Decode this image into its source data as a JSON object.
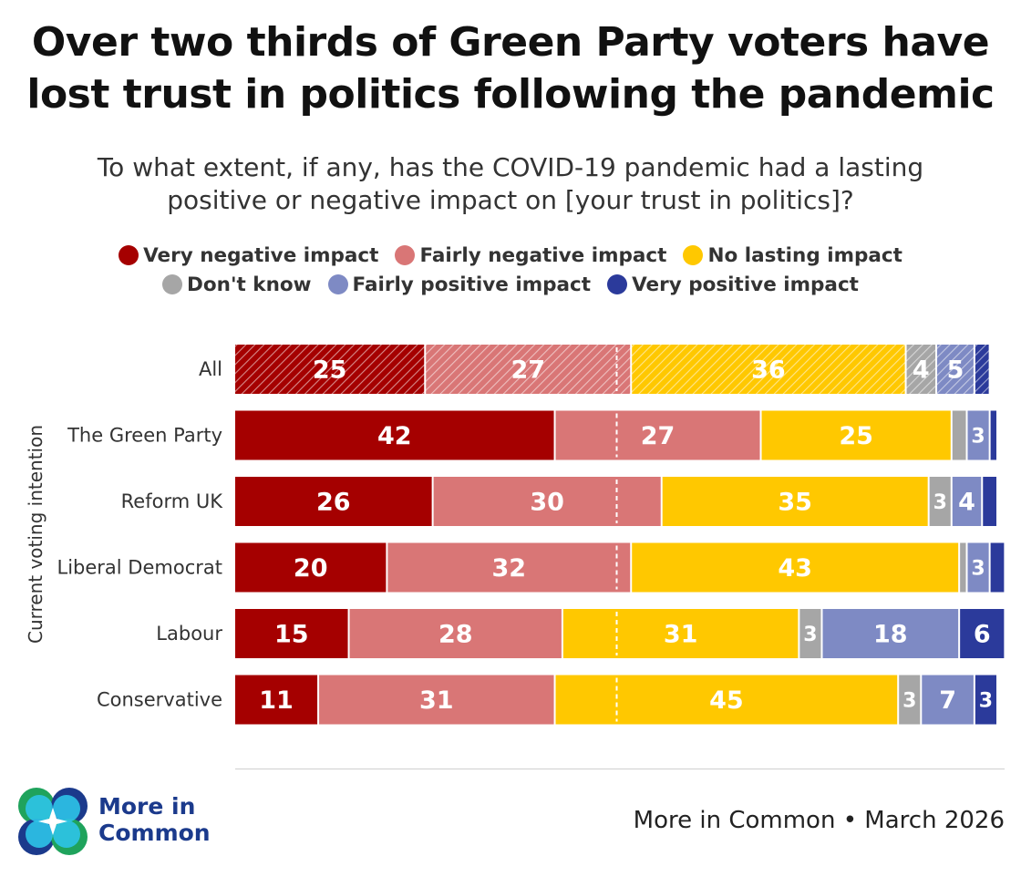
{
  "title_line1": "Over two thirds of Green Party voters have",
  "title_line2": "lost trust in politics following the pandemic",
  "subtitle_line1": "To what extent, if any, has the COVID-19 pandemic had a lasting",
  "subtitle_line2": "positive or negative impact on [your trust in politics]?",
  "footer": {
    "brand_line1": "More in",
    "brand_line2": "Common",
    "source": "More in Common • March 2026"
  },
  "chart_data": {
    "type": "bar",
    "orientation": "horizontal",
    "stacked": true,
    "ylabel": "Current voting intention",
    "categories": [
      "All",
      "The Green Party",
      "Reform UK",
      "Liberal Democrat",
      "Labour",
      "Conservative"
    ],
    "hatched_categories": [
      "All"
    ],
    "midpoint_line": 50,
    "xlim": [
      0,
      100
    ],
    "legend_position": "top",
    "series": [
      {
        "name": "Very negative impact",
        "color": "#a50000",
        "values": [
          25,
          42,
          26,
          20,
          15,
          11
        ]
      },
      {
        "name": "Fairly negative impact",
        "color": "#d97676",
        "values": [
          27,
          27,
          30,
          32,
          28,
          31
        ]
      },
      {
        "name": "No lasting impact",
        "color": "#ffc800",
        "values": [
          36,
          25,
          35,
          43,
          31,
          45
        ]
      },
      {
        "name": "Don't know",
        "color": "#a6a6a6",
        "values": [
          4,
          2,
          3,
          1,
          3,
          3
        ]
      },
      {
        "name": "Fairly positive impact",
        "color": "#7e8ac4",
        "values": [
          5,
          3,
          4,
          3,
          18,
          7
        ]
      },
      {
        "name": "Very positive impact",
        "color": "#2b3a9b",
        "values": [
          2,
          1,
          2,
          2,
          6,
          3
        ]
      }
    ],
    "data_labels": [
      [
        "25",
        "27",
        "36",
        "4",
        "5",
        ""
      ],
      [
        "42",
        "27",
        "25",
        "",
        "3",
        ""
      ],
      [
        "26",
        "30",
        "35",
        "3",
        "4",
        ""
      ],
      [
        "20",
        "32",
        "43",
        "",
        "3",
        ""
      ],
      [
        "15",
        "28",
        "31",
        "3",
        "18",
        "6"
      ],
      [
        "11",
        "31",
        "45",
        "3",
        "7",
        "3"
      ]
    ]
  }
}
